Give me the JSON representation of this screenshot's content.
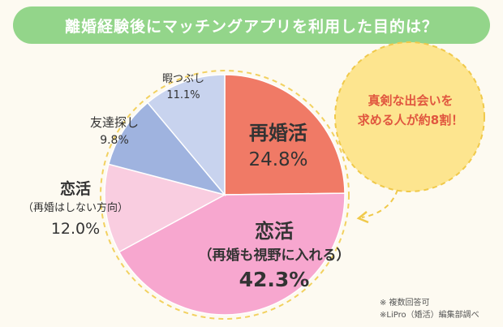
{
  "header": {
    "title": "離婚経験後にマッチングアプリを利用した目的は？"
  },
  "chart_data": {
    "type": "pie",
    "title": "離婚経験後にマッチングアプリを利用した目的は？",
    "slices": [
      {
        "name": "再婚活",
        "sub": "",
        "value": 24.8,
        "label": "24.8%",
        "color": "#f07a66"
      },
      {
        "name": "恋活",
        "sub": "（再婚も視野に入れる）",
        "value": 42.3,
        "label": "42.3%",
        "color": "#f7a7cf"
      },
      {
        "name": "恋活",
        "sub": "（再婚はしない方向）",
        "value": 12.0,
        "label": "12.0%",
        "color": "#f9cde0"
      },
      {
        "name": "友達探し",
        "sub": "",
        "value": 9.8,
        "label": "9.8%",
        "color": "#9fb3df"
      },
      {
        "name": "暇つぶし",
        "sub": "",
        "value": 11.1,
        "label": "11.1%",
        "color": "#c8d3ee"
      }
    ],
    "start_angle_deg": 0,
    "direction": "clockwise"
  },
  "callout": {
    "line1": "真剣な出会いを",
    "line2": "求める人が約8割！",
    "fill": "#fde58f",
    "text_color": "#e0563f"
  },
  "notes": {
    "line1": "※ 複数回答可",
    "line2": "※LiPro（婚活）編集部調べ"
  }
}
